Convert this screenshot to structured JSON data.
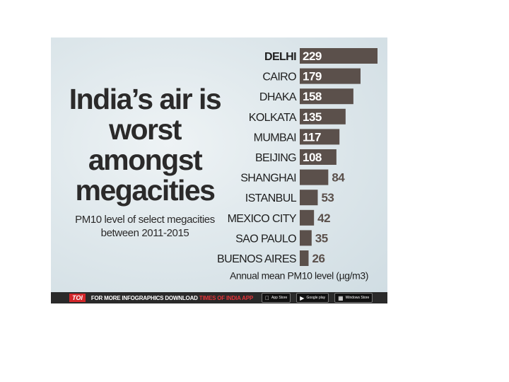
{
  "headline": "India’s air is worst amongst megacities",
  "subtitle": "PM10 level of select megacities between 2011-2015",
  "footer": {
    "brand": "TOI",
    "download_prefix": "FOR MORE INFOGRAPHICS DOWNLOAD",
    "download_app": "TIMES OF INDIA APP",
    "app_store": "App Store",
    "google_play": "Google play",
    "windows_store": "Windows Store"
  },
  "colors": {
    "bar": "#5b504b",
    "label_dark": "#1e1e1e",
    "value_outside": "#5b504b",
    "footer_red": "#d3262a"
  },
  "chart_data": {
    "type": "bar",
    "orientation": "horizontal",
    "categories": [
      "DELHI",
      "CAIRO",
      "DHAKA",
      "KOLKATA",
      "MUMBAI",
      "BEIJING",
      "SHANGHAI",
      "ISTANBUL",
      "MEXICO CITY",
      "SAO PAULO",
      "BUENOS AIRES"
    ],
    "values": [
      229,
      179,
      158,
      135,
      117,
      108,
      84,
      53,
      42,
      35,
      26
    ],
    "xlabel": "Annual mean PM10 level (µg/m3)",
    "ylabel": "",
    "highlight": "DELHI",
    "xlim": [
      0,
      229
    ],
    "grid": false
  }
}
